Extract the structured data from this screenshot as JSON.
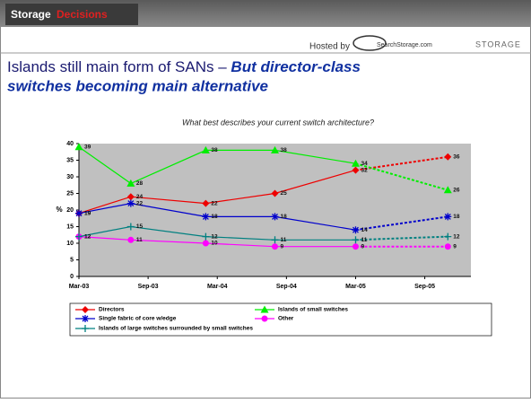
{
  "header": {
    "logo_word1": "Storage",
    "logo_word2": "Decisions",
    "hosted_by": "Hosted by",
    "host_site": "SearchStorage.com",
    "host_mag": "STORAGE"
  },
  "slide": {
    "title": "Islands still main form of SANs – ",
    "title_emphasis": "But director-class switches becoming main alternative"
  },
  "chart_data": {
    "type": "line",
    "title": "What best describes your current switch architecture?",
    "y_label": "%",
    "x": [
      0,
      4.5,
      11,
      17,
      24,
      32
    ],
    "xlim": [
      0,
      34
    ],
    "xticks": [
      {
        "value": 0,
        "label": "Mar-03"
      },
      {
        "value": 6,
        "label": "Sep-03"
      },
      {
        "value": 12,
        "label": "Mar-04"
      },
      {
        "value": 18,
        "label": "Sep-04"
      },
      {
        "value": 24,
        "label": "Mar-05"
      },
      {
        "value": 30,
        "label": "Sep-05"
      }
    ],
    "ylim": [
      0,
      40
    ],
    "yticks": [
      0,
      5,
      10,
      15,
      20,
      25,
      30,
      35,
      40
    ],
    "dashed_last_segment": true,
    "series": [
      {
        "name": "Directors",
        "color": "#ee0000",
        "marker": "diamond",
        "values": [
          19,
          24,
          22,
          25,
          32,
          36
        ]
      },
      {
        "name": "Islands of small switches",
        "color": "#00ee00",
        "marker": "triangle",
        "values": [
          39,
          28,
          38,
          38,
          34,
          26
        ]
      },
      {
        "name": "Single fabric of core w/edge",
        "color": "#0000cc",
        "marker": "star",
        "values": [
          19,
          22,
          18,
          18,
          14,
          18
        ]
      },
      {
        "name": "Other",
        "color": "#ff00ff",
        "marker": "circle",
        "values": [
          12,
          11,
          10,
          9,
          9,
          9
        ]
      },
      {
        "name": "Islands of large switches surrounded by small switches",
        "color": "#008080",
        "marker": "plus",
        "values": [
          12,
          15,
          12,
          11,
          11,
          12
        ]
      }
    ]
  }
}
